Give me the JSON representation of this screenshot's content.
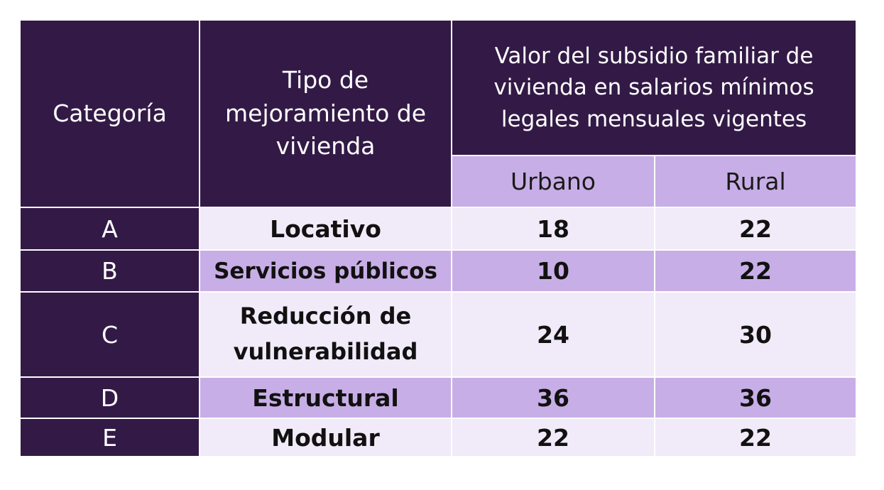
{
  "table": {
    "headers": {
      "categoria": "Categoría",
      "tipo": "Tipo de mejoramiento de vivienda",
      "valor": "Valor del subsidio familiar de vivienda en salarios mínimos legales mensuales vigentes",
      "urbano": "Urbano",
      "rural": "Rural"
    },
    "rows": [
      {
        "categoria": "A",
        "tipo": "Locativo",
        "urbano": "18",
        "rural": "22"
      },
      {
        "categoria": "B",
        "tipo": "Servicios públicos",
        "urbano": "10",
        "rural": "22"
      },
      {
        "categoria": "C",
        "tipo": "Reducción de vulnerabilidad",
        "urbano": "24",
        "rural": "30"
      },
      {
        "categoria": "D",
        "tipo": "Estructural",
        "urbano": "36",
        "rural": "36"
      },
      {
        "categoria": "E",
        "tipo": "Modular",
        "urbano": "22",
        "rural": "22"
      }
    ]
  },
  "colors": {
    "header_dark": "#331a46",
    "row_light": "#f1eaf8",
    "row_mid": "#c8aee6"
  }
}
